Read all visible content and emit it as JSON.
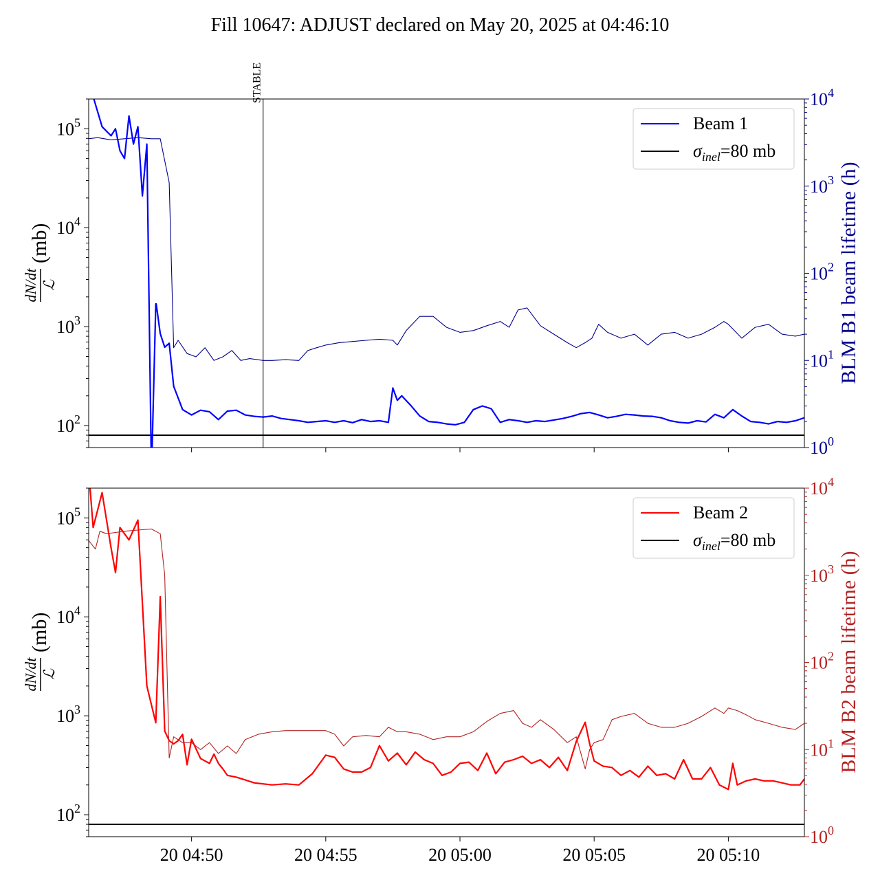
{
  "title": "Fill 10647: ADJUST declared on May 20, 2025 at 04:46:10",
  "colors": {
    "beam1": "#0000ff",
    "beam1_lifetime": "#00008b",
    "beam1_axis": "#00008b",
    "beam2": "#ff0000",
    "beam2_lifetime": "#b22222",
    "beam2_axis": "#b22222",
    "reference": "#000000"
  },
  "chart_data": [
    {
      "type": "line",
      "name": "beam1-panel",
      "y_label_fraction_numerator": "dN/dt",
      "y_label_fraction_denominator": "ℒ",
      "y_label_unit": "(mb)",
      "y2_label": "BLM B1 beam lifetime (h)",
      "y_scale": "log",
      "ylim": [
        60,
        200000
      ],
      "y_ticks": [
        100,
        1000,
        10000,
        100000
      ],
      "y_tick_labels": [
        "10",
        "10",
        "10",
        "10"
      ],
      "y_tick_label_exponents": [
        "2",
        "3",
        "4",
        "5"
      ],
      "y2_scale": "log",
      "y2lim": [
        1,
        10000
      ],
      "y2_ticks": [
        1,
        10,
        100,
        1000,
        10000
      ],
      "y2_tick_labels": [
        "10",
        "10",
        "10",
        "10",
        "10"
      ],
      "y2_tick_label_exponents": [
        "0",
        "1",
        "2",
        "3",
        "4"
      ],
      "x_label": "",
      "xlim": [
        "04:46:10",
        "05:12:50"
      ],
      "x_ticks": [
        "04:50",
        "04:55",
        "05:00",
        "05:05",
        "05:10"
      ],
      "x_tick_labels": [
        "",
        "",
        "",
        "",
        ""
      ],
      "grid": false,
      "legend_position": "top-right",
      "legend": [
        {
          "label": "Beam 1",
          "color_key": "beam1"
        },
        {
          "label_symbol": "σ",
          "label_subscript": "inel",
          "label_rest": "=80 mb",
          "color_key": "reference"
        }
      ],
      "annotations": [
        {
          "text": "STABLE",
          "at_time": "04:52:40",
          "kind": "vertical-line"
        }
      ],
      "reference_value_mb": 80,
      "series": [
        {
          "name": "Beam 1",
          "axis": "left",
          "color_key": "beam1",
          "x": [
            "04:46:10",
            "04:46:40",
            "04:47:00",
            "04:47:10",
            "04:47:20",
            "04:47:30",
            "04:47:40",
            "04:47:50",
            "04:48:00",
            "04:48:10",
            "04:48:20",
            "04:48:30",
            "04:48:31",
            "04:48:40",
            "04:48:41",
            "04:48:50",
            "04:49:00",
            "04:49:10",
            "04:49:20",
            "04:49:40",
            "04:50:00",
            "04:50:20",
            "04:50:40",
            "04:51:00",
            "04:51:20",
            "04:51:40",
            "04:52:00",
            "04:52:20",
            "04:52:40",
            "04:53:00",
            "04:53:20",
            "04:53:40",
            "04:54:00",
            "04:54:20",
            "04:54:40",
            "04:55:00",
            "04:55:20",
            "04:55:40",
            "04:56:00",
            "04:56:20",
            "04:56:40",
            "04:57:00",
            "04:57:20",
            "04:57:30",
            "04:57:40",
            "04:57:50",
            "04:58:10",
            "04:58:30",
            "04:58:50",
            "04:59:10",
            "04:59:30",
            "04:59:50",
            "05:00:10",
            "05:00:30",
            "05:00:50",
            "05:01:10",
            "05:01:30",
            "05:01:50",
            "05:02:10",
            "05:02:30",
            "05:02:50",
            "05:03:10",
            "05:03:30",
            "05:03:50",
            "05:04:10",
            "05:04:30",
            "05:04:50",
            "05:05:10",
            "05:05:30",
            "05:05:50",
            "05:06:10",
            "05:06:30",
            "05:06:50",
            "05:07:10",
            "05:07:30",
            "05:07:50",
            "05:08:10",
            "05:08:30",
            "05:08:50",
            "05:09:10",
            "05:09:30",
            "05:09:50",
            "05:10:10",
            "05:10:30",
            "05:10:50",
            "05:11:10",
            "05:11:30",
            "05:11:50",
            "05:12:10",
            "05:12:30",
            "05:12:50"
          ],
          "y": [
            300000,
            105000,
            85000,
            100000,
            60000,
            50000,
            135000,
            70000,
            105000,
            21000,
            70000,
            40,
            40,
            1700,
            1700,
            850,
            620,
            680,
            250,
            145,
            128,
            143,
            138,
            115,
            140,
            143,
            128,
            124,
            122,
            125,
            118,
            115,
            112,
            108,
            110,
            112,
            108,
            112,
            107,
            115,
            110,
            112,
            108,
            240,
            180,
            200,
            160,
            125,
            110,
            108,
            104,
            102,
            108,
            145,
            158,
            148,
            108,
            115,
            112,
            108,
            112,
            110,
            114,
            118,
            124,
            132,
            136,
            128,
            120,
            124,
            130,
            128,
            125,
            124,
            120,
            112,
            108,
            106,
            112,
            109,
            130,
            120,
            145,
            125,
            110,
            108,
            104,
            110,
            108,
            112,
            120
          ]
        },
        {
          "name": "BLM B1 beam lifetime (h)",
          "axis": "right",
          "color_key": "beam1_lifetime",
          "x": [
            "04:46:10",
            "04:46:30",
            "04:47:00",
            "04:47:30",
            "04:48:00",
            "04:48:30",
            "04:48:50",
            "04:49:10",
            "04:49:20",
            "04:49:30",
            "04:49:50",
            "04:50:10",
            "04:50:30",
            "04:50:50",
            "04:51:10",
            "04:51:30",
            "04:51:50",
            "04:52:10",
            "04:52:40",
            "04:53:00",
            "04:53:30",
            "04:54:00",
            "04:54:20",
            "04:54:40",
            "04:55:00",
            "04:55:30",
            "04:56:00",
            "04:56:30",
            "04:57:00",
            "04:57:30",
            "04:57:40",
            "04:58:00",
            "04:58:30",
            "04:59:00",
            "04:59:30",
            "05:00:00",
            "05:00:30",
            "05:01:00",
            "05:01:30",
            "05:01:50",
            "05:02:10",
            "05:02:30",
            "05:03:00",
            "05:03:30",
            "05:04:00",
            "05:04:20",
            "05:04:40",
            "05:04:55",
            "05:05:10",
            "05:05:30",
            "05:06:00",
            "05:06:30",
            "05:07:00",
            "05:07:30",
            "05:08:00",
            "05:08:30",
            "05:09:00",
            "05:09:30",
            "05:09:50",
            "05:10:00",
            "05:10:30",
            "05:11:00",
            "05:11:30",
            "05:12:00",
            "05:12:30",
            "05:12:50"
          ],
          "y": [
            3500,
            3600,
            3400,
            3500,
            3600,
            3500,
            3500,
            1100,
            14,
            17,
            12,
            11,
            14,
            10,
            11,
            13,
            10,
            10.5,
            10,
            10,
            10.2,
            10,
            13,
            14,
            15,
            16,
            16.5,
            17,
            17.5,
            17,
            15,
            22,
            32,
            32,
            24,
            21,
            22,
            25,
            28,
            24,
            38,
            40,
            25,
            20,
            16,
            14,
            16,
            18,
            26,
            21,
            18,
            20,
            15,
            20,
            21,
            18,
            20,
            24,
            28,
            26,
            18,
            24,
            26,
            20,
            19,
            20
          ]
        }
      ]
    },
    {
      "type": "line",
      "name": "beam2-panel",
      "y_label_fraction_numerator": "dN/dt",
      "y_label_fraction_denominator": "ℒ",
      "y_label_unit": "(mb)",
      "y2_label": "BLM B2 beam lifetime (h)",
      "y_scale": "log",
      "ylim": [
        60,
        200000
      ],
      "y_ticks": [
        100,
        1000,
        10000,
        100000
      ],
      "y_tick_labels": [
        "10",
        "10",
        "10",
        "10"
      ],
      "y_tick_label_exponents": [
        "2",
        "3",
        "4",
        "5"
      ],
      "y2_scale": "log",
      "y2lim": [
        1,
        10000
      ],
      "y2_ticks": [
        1,
        10,
        100,
        1000,
        10000
      ],
      "y2_tick_labels": [
        "10",
        "10",
        "10",
        "10",
        "10"
      ],
      "y2_tick_label_exponents": [
        "0",
        "1",
        "2",
        "3",
        "4"
      ],
      "x_label": "",
      "xlim": [
        "04:46:10",
        "05:12:50"
      ],
      "x_ticks": [
        "04:50",
        "04:55",
        "05:00",
        "05:05",
        "05:10"
      ],
      "x_tick_labels": [
        "20 04:50",
        "20 04:55",
        "20 05:00",
        "20 05:05",
        "20 05:10"
      ],
      "grid": false,
      "legend_position": "top-right",
      "legend": [
        {
          "label": "Beam 2",
          "color_key": "beam2"
        },
        {
          "label_symbol": "σ",
          "label_subscript": "inel",
          "label_rest": "=80 mb",
          "color_key": "reference"
        }
      ],
      "reference_value_mb": 80,
      "series": [
        {
          "name": "Beam 2",
          "axis": "left",
          "color_key": "beam2",
          "x": [
            "04:46:10",
            "04:46:20",
            "04:46:40",
            "04:47:00",
            "04:47:10",
            "04:47:20",
            "04:47:40",
            "04:48:00",
            "04:48:20",
            "04:48:40",
            "04:48:50",
            "04:49:00",
            "04:49:10",
            "04:49:20",
            "04:49:30",
            "04:49:40",
            "04:49:50",
            "04:50:00",
            "04:50:20",
            "04:50:40",
            "04:50:50",
            "04:51:00",
            "04:51:10",
            "04:51:20",
            "04:51:40",
            "04:52:00",
            "04:52:20",
            "04:52:40",
            "04:53:00",
            "04:53:30",
            "04:54:00",
            "04:54:30",
            "04:55:00",
            "04:55:20",
            "04:55:40",
            "04:56:00",
            "04:56:20",
            "04:56:40",
            "04:57:00",
            "04:57:20",
            "04:57:40",
            "04:58:00",
            "04:58:20",
            "04:58:40",
            "04:59:00",
            "04:59:20",
            "04:59:40",
            "05:00:00",
            "05:00:20",
            "05:00:40",
            "05:01:00",
            "05:01:20",
            "05:01:40",
            "05:02:00",
            "05:02:20",
            "05:02:40",
            "05:03:00",
            "05:03:20",
            "05:03:40",
            "05:04:00",
            "05:04:20",
            "05:04:40",
            "05:04:50",
            "05:05:00",
            "05:05:20",
            "05:05:40",
            "05:06:00",
            "05:06:20",
            "05:06:40",
            "05:07:00",
            "05:07:20",
            "05:07:40",
            "05:08:00",
            "05:08:20",
            "05:08:40",
            "05:09:00",
            "05:09:20",
            "05:09:40",
            "05:10:00",
            "05:10:10",
            "05:10:20",
            "05:10:40",
            "05:11:00",
            "05:11:20",
            "05:11:40",
            "05:12:00",
            "05:12:20",
            "05:12:40",
            "05:12:50"
          ],
          "y": [
            300000,
            80000,
            180000,
            50000,
            28000,
            80000,
            60000,
            95000,
            2000,
            850,
            16000,
            700,
            560,
            520,
            560,
            650,
            320,
            580,
            370,
            330,
            410,
            330,
            290,
            250,
            240,
            225,
            210,
            205,
            200,
            205,
            200,
            260,
            400,
            380,
            290,
            270,
            270,
            300,
            500,
            350,
            420,
            320,
            430,
            360,
            330,
            250,
            270,
            330,
            340,
            280,
            420,
            260,
            340,
            360,
            390,
            330,
            360,
            300,
            380,
            280,
            550,
            860,
            520,
            350,
            310,
            300,
            250,
            280,
            240,
            310,
            250,
            260,
            230,
            360,
            230,
            230,
            300,
            200,
            180,
            330,
            200,
            220,
            230,
            220,
            220,
            210,
            200,
            200,
            230
          ]
        },
        {
          "name": "BLM B2 beam lifetime (h)",
          "axis": "right",
          "color_key": "beam2_lifetime",
          "x": [
            "04:46:10",
            "04:46:25",
            "04:46:35",
            "04:46:50",
            "04:47:10",
            "04:47:30",
            "04:48:00",
            "04:48:30",
            "04:48:50",
            "04:49:00",
            "04:49:10",
            "04:49:20",
            "04:49:40",
            "04:50:00",
            "04:50:20",
            "04:50:40",
            "04:51:00",
            "04:51:20",
            "04:51:40",
            "04:52:00",
            "04:52:30",
            "04:53:00",
            "04:53:30",
            "04:54:00",
            "04:54:30",
            "04:55:00",
            "04:55:20",
            "04:55:40",
            "04:56:00",
            "04:56:30",
            "04:57:00",
            "04:57:20",
            "04:57:40",
            "04:58:00",
            "04:58:30",
            "04:59:00",
            "04:59:30",
            "05:00:00",
            "05:00:30",
            "05:01:00",
            "05:01:30",
            "05:02:00",
            "05:02:20",
            "05:02:40",
            "05:03:00",
            "05:03:30",
            "05:04:00",
            "05:04:20",
            "05:04:40",
            "05:04:50",
            "05:05:00",
            "05:05:20",
            "05:05:40",
            "05:06:00",
            "05:06:30",
            "05:07:00",
            "05:07:30",
            "05:08:00",
            "05:08:30",
            "05:09:00",
            "05:09:30",
            "05:09:50",
            "05:10:00",
            "05:10:20",
            "05:10:40",
            "05:11:00",
            "05:11:30",
            "05:12:00",
            "05:12:30",
            "05:12:50"
          ],
          "y": [
            2500,
            2000,
            3200,
            3000,
            3100,
            3200,
            3300,
            3400,
            3000,
            1000,
            8,
            14,
            12,
            12,
            10,
            12,
            9,
            11,
            9,
            13,
            15,
            16,
            16.5,
            16.5,
            16.5,
            16.5,
            15,
            11,
            14,
            14.5,
            14,
            18,
            16,
            16,
            15,
            13,
            14,
            14,
            16,
            21,
            26,
            28,
            20,
            18,
            22,
            17,
            12,
            14,
            6,
            10,
            12,
            13,
            22,
            24,
            26,
            20,
            18,
            18,
            20,
            24,
            30,
            26,
            30,
            28,
            25,
            22,
            20,
            18,
            17,
            20
          ]
        }
      ]
    }
  ]
}
